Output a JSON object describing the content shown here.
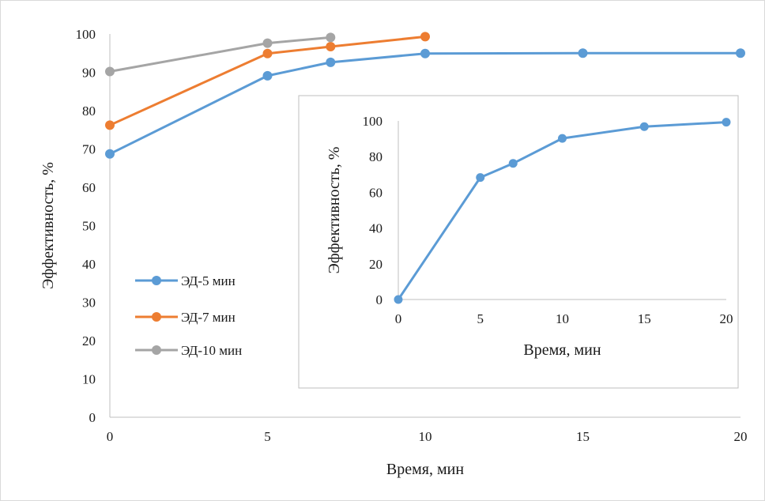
{
  "chart_data": [
    {
      "type": "line",
      "title": "",
      "xlabel": "Время, мин",
      "ylabel": "Эффективность, %",
      "xlim": [
        0,
        20
      ],
      "ylim": [
        0,
        100
      ],
      "xticks": [
        "0",
        "5",
        "10",
        "15",
        "20"
      ],
      "yticks": [
        "0",
        "10",
        "20",
        "30",
        "40",
        "50",
        "60",
        "70",
        "80",
        "90",
        "100"
      ],
      "grid": false,
      "legend_position": "left",
      "series": [
        {
          "name": "ЭД-5 мин",
          "color": "#5b9bd5",
          "points": [
            [
              0,
              68.7
            ],
            [
              5,
              89.1
            ],
            [
              7,
              92.6
            ],
            [
              10,
              94.9
            ],
            [
              15,
              95.0
            ],
            [
              20,
              95.0
            ]
          ]
        },
        {
          "name": "ЭД-7 мин",
          "color": "#ed7d31",
          "points": [
            [
              0,
              76.2
            ],
            [
              5,
              94.9
            ],
            [
              7,
              96.7
            ],
            [
              10,
              99.3
            ]
          ]
        },
        {
          "name": "ЭД-10 мин",
          "color": "#a5a5a5",
          "points": [
            [
              0,
              90.2
            ],
            [
              5,
              97.6
            ],
            [
              7,
              99.1
            ]
          ]
        }
      ]
    },
    {
      "type": "line",
      "title": "",
      "xlabel": "Время, мин",
      "ylabel": "Эффективность, %",
      "xlim": [
        0,
        20
      ],
      "ylim": [
        0,
        100
      ],
      "xticks": [
        "0",
        "5",
        "10",
        "15",
        "20"
      ],
      "yticks": [
        "0",
        "20",
        "40",
        "60",
        "80",
        "100"
      ],
      "grid": false,
      "series": [
        {
          "color": "#5b9bd5",
          "points": [
            [
              0,
              0
            ],
            [
              5,
              68.3
            ],
            [
              7,
              76.2
            ],
            [
              10,
              90.2
            ],
            [
              15,
              96.8
            ],
            [
              20,
              99.3
            ]
          ]
        }
      ]
    }
  ]
}
